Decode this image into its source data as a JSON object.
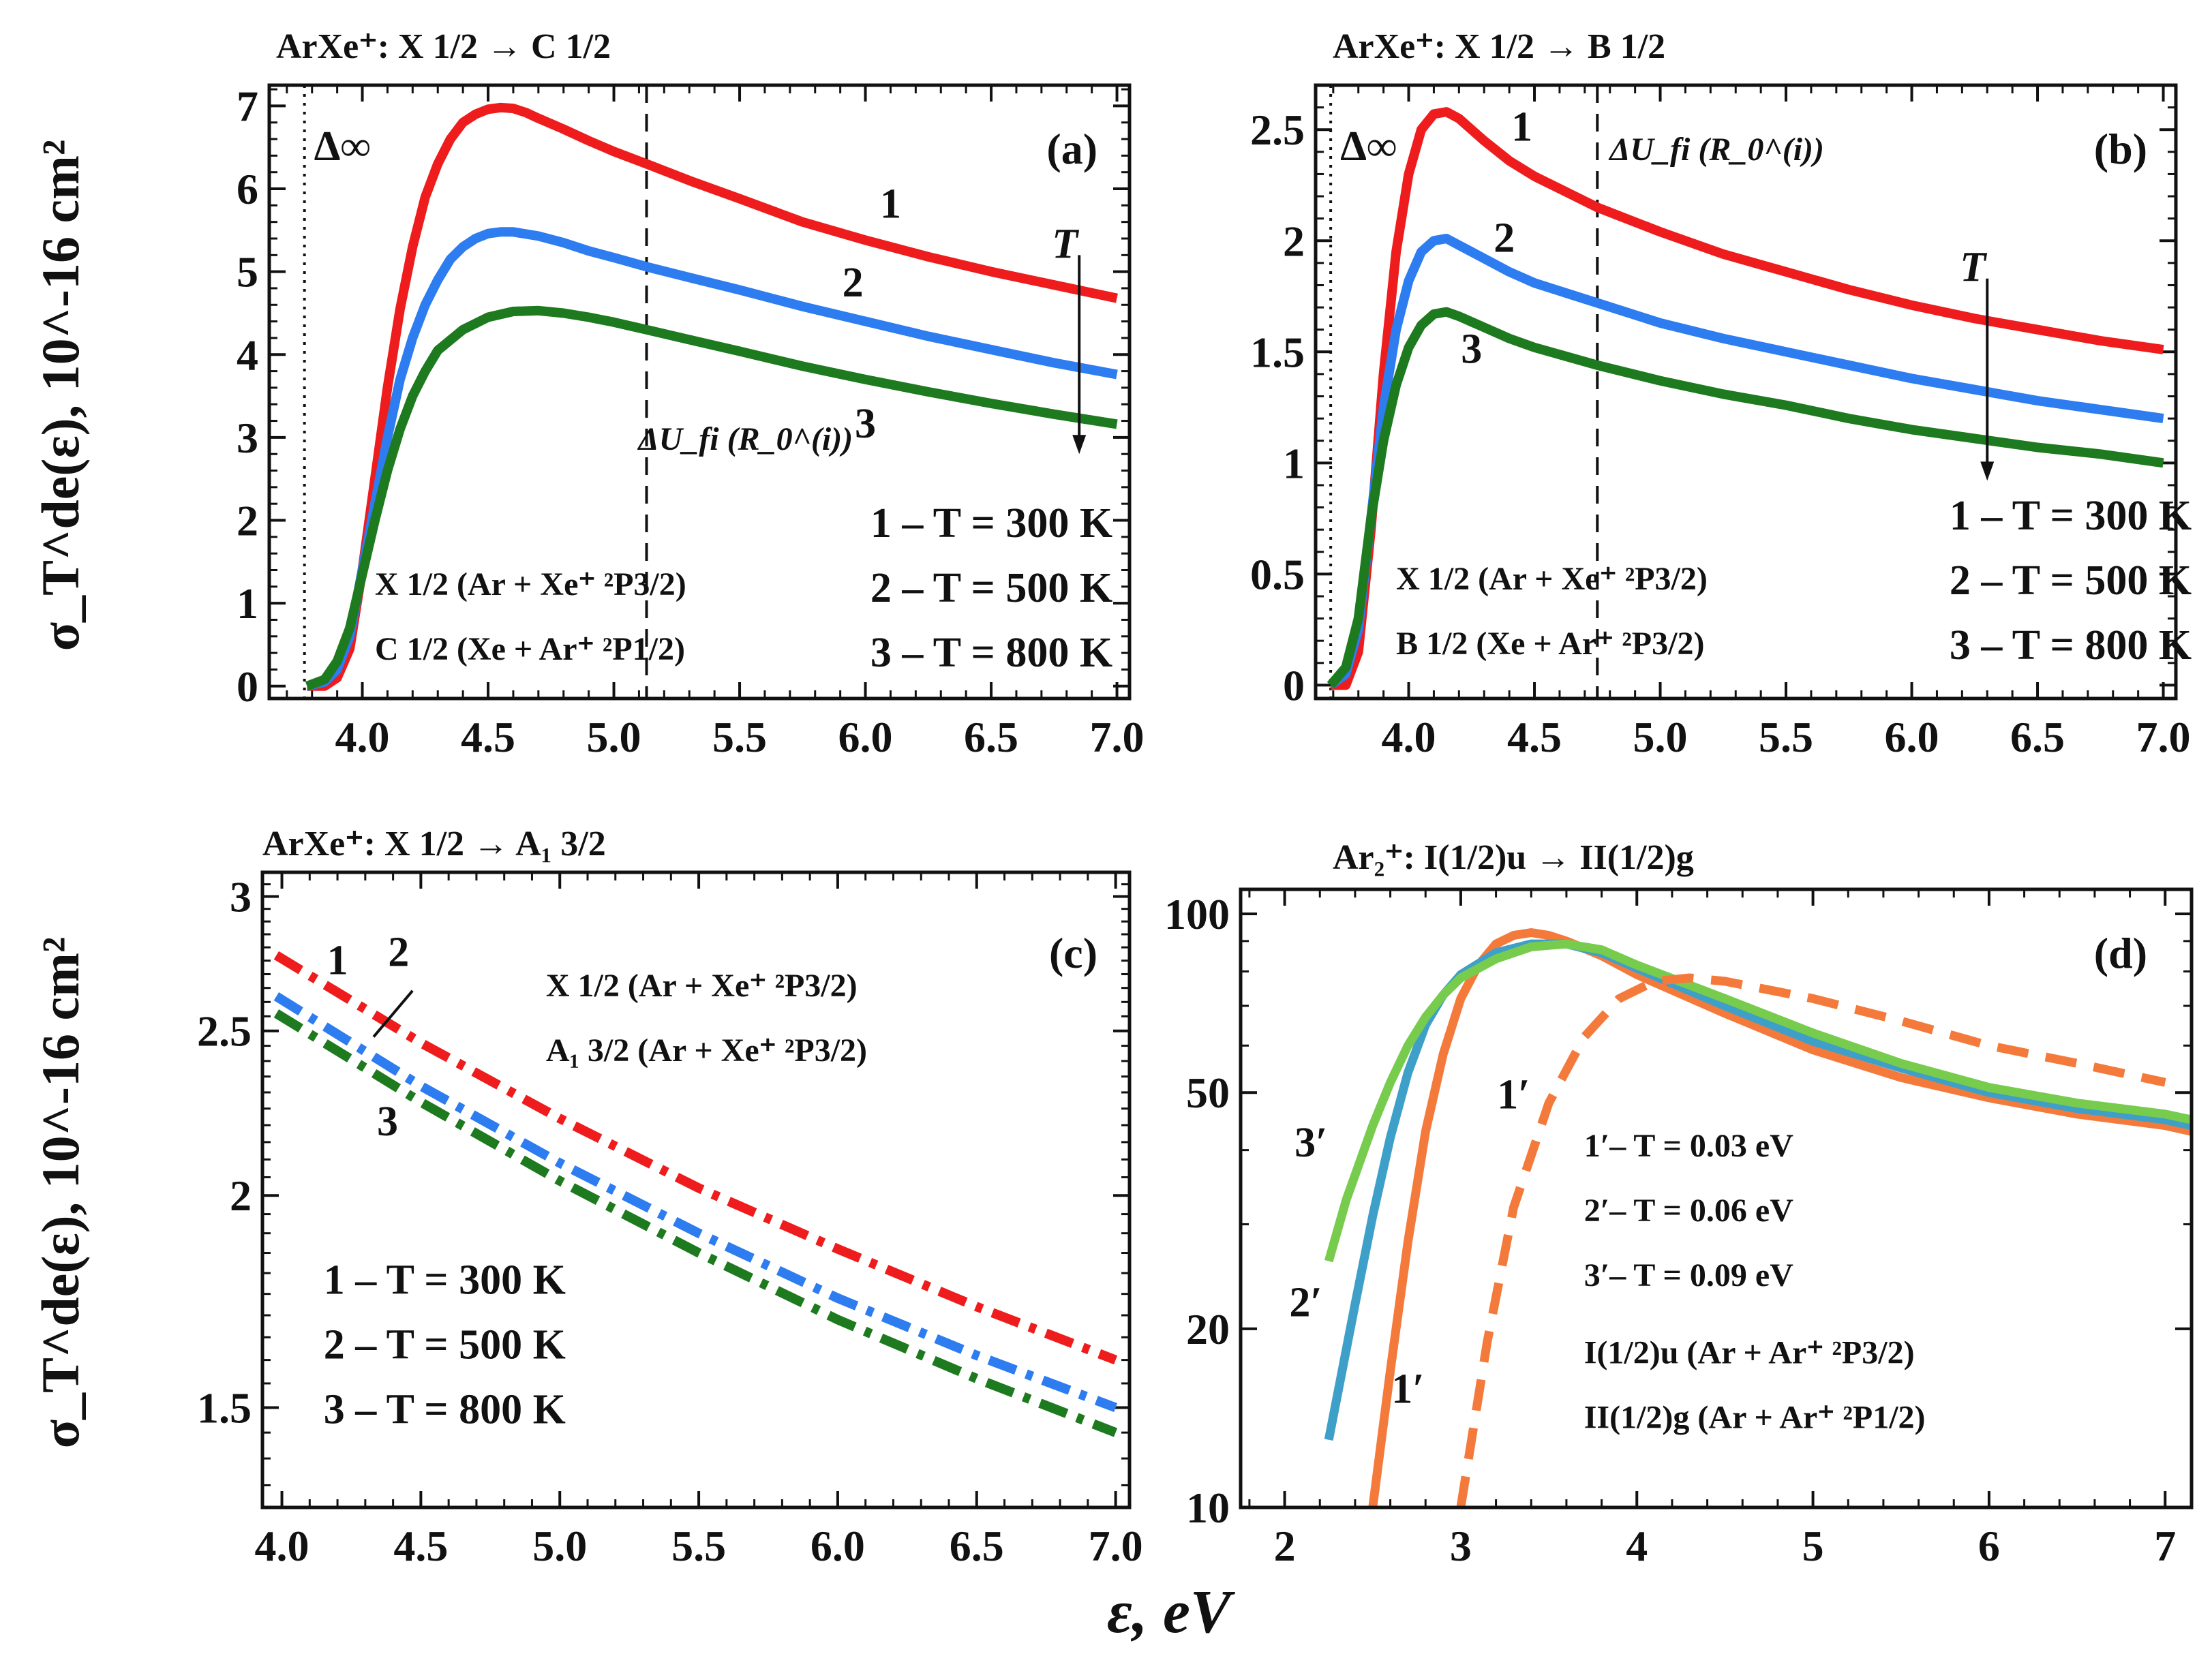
{
  "y_axis_label": "σ_T^de(ε), 10^-16 cm²",
  "x_axis_label": "ε, eV",
  "chart_data": [
    {
      "id": "a",
      "type": "line",
      "title": "ArXe⁺: X 1/2 → C 1/2",
      "panel_label": "(a)",
      "xlim": [
        3.63,
        7.05
      ],
      "ylim": [
        -0.15,
        7.25
      ],
      "xscale": "linear",
      "yscale": "linear",
      "xticks": [
        4.0,
        4.5,
        5.0,
        5.5,
        6.0,
        6.5,
        7.0
      ],
      "xtick_labels": [
        "4.0",
        "4.5",
        "5.0",
        "5.5",
        "6.0",
        "6.5",
        "7.0"
      ],
      "yticks": [
        0,
        1,
        2,
        3,
        4,
        5,
        6,
        7
      ],
      "ytick_labels": [
        "0",
        "1",
        "2",
        "3",
        "4",
        "5",
        "6",
        "7"
      ],
      "series": [
        {
          "name": "1 – T = 300 K",
          "color": "#ee1c1c",
          "dash": "solid",
          "x": [
            3.78,
            3.85,
            3.9,
            3.95,
            4.0,
            4.05,
            4.1,
            4.15,
            4.2,
            4.25,
            4.3,
            4.35,
            4.4,
            4.45,
            4.5,
            4.55,
            4.6,
            4.65,
            4.7,
            4.8,
            4.9,
            5.0,
            5.13,
            5.3,
            5.5,
            5.75,
            6.0,
            6.25,
            6.5,
            6.75,
            7.0
          ],
          "y": [
            0.0,
            0.0,
            0.1,
            0.45,
            1.4,
            2.5,
            3.6,
            4.55,
            5.3,
            5.9,
            6.3,
            6.6,
            6.8,
            6.9,
            6.96,
            6.98,
            6.97,
            6.92,
            6.85,
            6.72,
            6.58,
            6.45,
            6.3,
            6.1,
            5.88,
            5.6,
            5.38,
            5.18,
            5.0,
            4.84,
            4.68
          ]
        },
        {
          "name": "2 – T = 500 K",
          "color": "#2d7cf0",
          "dash": "solid",
          "x": [
            3.78,
            3.85,
            3.9,
            3.95,
            4.0,
            4.05,
            4.1,
            4.15,
            4.2,
            4.25,
            4.3,
            4.35,
            4.4,
            4.45,
            4.5,
            4.55,
            4.6,
            4.7,
            4.8,
            4.9,
            5.0,
            5.13,
            5.3,
            5.5,
            5.75,
            6.0,
            6.25,
            6.5,
            6.75,
            7.0
          ],
          "y": [
            0.0,
            0.05,
            0.2,
            0.6,
            1.4,
            2.2,
            3.0,
            3.7,
            4.2,
            4.6,
            4.9,
            5.15,
            5.3,
            5.4,
            5.46,
            5.48,
            5.48,
            5.43,
            5.35,
            5.25,
            5.17,
            5.06,
            4.93,
            4.78,
            4.58,
            4.4,
            4.22,
            4.06,
            3.9,
            3.76
          ]
        },
        {
          "name": "3 – T = 800 K",
          "color": "#1e7a1e",
          "dash": "solid",
          "x": [
            3.78,
            3.85,
            3.9,
            3.95,
            4.0,
            4.05,
            4.1,
            4.15,
            4.2,
            4.25,
            4.3,
            4.4,
            4.5,
            4.6,
            4.7,
            4.8,
            4.9,
            5.0,
            5.13,
            5.3,
            5.5,
            5.75,
            6.0,
            6.25,
            6.5,
            6.75,
            7.0
          ],
          "y": [
            0.0,
            0.08,
            0.3,
            0.7,
            1.35,
            2.0,
            2.6,
            3.1,
            3.5,
            3.8,
            4.05,
            4.3,
            4.45,
            4.52,
            4.53,
            4.5,
            4.45,
            4.39,
            4.3,
            4.18,
            4.04,
            3.86,
            3.7,
            3.55,
            3.41,
            3.28,
            3.16
          ]
        }
      ],
      "vlines": [
        {
          "x": 3.77,
          "style": "dotted"
        },
        {
          "x": 5.13,
          "style": "dashed"
        }
      ],
      "curve_labels": [
        {
          "text": "1",
          "x": 6.1,
          "y": 5.65
        },
        {
          "text": "2",
          "x": 5.95,
          "y": 4.7
        },
        {
          "text": "3",
          "x": 6.0,
          "y": 3.0
        }
      ],
      "threshold_label": "Δ∞",
      "vline_label": "ΔU_fi (R_0^(i))",
      "temp_symbol": "T",
      "arrow": {
        "x": 6.85,
        "y_from": 5.2,
        "y_to": 2.8
      },
      "legend": [
        "1 – T = 300 K",
        "2 – T = 500 K",
        "3 – T = 800 K"
      ],
      "legend_anchor": {
        "x": 6.02,
        "y": 1.8
      },
      "states": [
        "X 1/2 (Ar + Xe⁺ ²P3/2)",
        "C 1/2 (Xe + Ar⁺ ²P1/2)"
      ],
      "states_anchor": {
        "x": 4.05,
        "y": 1.1
      }
    },
    {
      "id": "b",
      "type": "line",
      "title": "ArXe⁺: X 1/2 → B 1/2",
      "panel_label": "(b)",
      "xlim": [
        3.63,
        7.05
      ],
      "ylim": [
        -0.06,
        2.7
      ],
      "xscale": "linear",
      "yscale": "linear",
      "xticks": [
        4.0,
        4.5,
        5.0,
        5.5,
        6.0,
        6.5,
        7.0
      ],
      "xtick_labels": [
        "4.0",
        "4.5",
        "5.0",
        "5.5",
        "6.0",
        "6.5",
        "7.0"
      ],
      "yticks": [
        0,
        0.5,
        1,
        1.5,
        2,
        2.5
      ],
      "ytick_labels": [
        "0",
        "0.5",
        "1",
        "1.5",
        "2",
        "2.5"
      ],
      "series": [
        {
          "name": "1 – T = 300 K",
          "color": "#ee1c1c",
          "dash": "solid",
          "x": [
            3.69,
            3.75,
            3.8,
            3.85,
            3.9,
            3.95,
            4.0,
            4.05,
            4.1,
            4.15,
            4.2,
            4.3,
            4.4,
            4.5,
            4.75,
            5.0,
            5.25,
            5.5,
            5.75,
            6.0,
            6.25,
            6.5,
            6.75,
            7.0
          ],
          "y": [
            0.0,
            0.0,
            0.15,
            0.7,
            1.4,
            1.95,
            2.3,
            2.5,
            2.57,
            2.58,
            2.55,
            2.45,
            2.36,
            2.29,
            2.15,
            2.04,
            1.94,
            1.86,
            1.78,
            1.71,
            1.65,
            1.6,
            1.55,
            1.51
          ]
        },
        {
          "name": "2 – T = 500 K",
          "color": "#2d7cf0",
          "dash": "solid",
          "x": [
            3.69,
            3.75,
            3.8,
            3.85,
            3.9,
            3.95,
            4.0,
            4.05,
            4.1,
            4.15,
            4.2,
            4.3,
            4.4,
            4.5,
            4.75,
            5.0,
            5.25,
            5.5,
            5.75,
            6.0,
            6.25,
            6.5,
            6.75,
            7.0
          ],
          "y": [
            0.0,
            0.05,
            0.25,
            0.75,
            1.25,
            1.6,
            1.82,
            1.95,
            2.0,
            2.01,
            1.98,
            1.92,
            1.86,
            1.81,
            1.72,
            1.63,
            1.56,
            1.5,
            1.44,
            1.38,
            1.33,
            1.28,
            1.24,
            1.2
          ]
        },
        {
          "name": "3 – T = 800 K",
          "color": "#1e7a1e",
          "dash": "solid",
          "x": [
            3.69,
            3.75,
            3.8,
            3.85,
            3.9,
            3.95,
            4.0,
            4.05,
            4.1,
            4.15,
            4.2,
            4.3,
            4.4,
            4.5,
            4.75,
            5.0,
            5.25,
            5.5,
            5.75,
            6.0,
            6.25,
            6.5,
            6.75,
            7.0
          ],
          "y": [
            0.0,
            0.08,
            0.3,
            0.75,
            1.1,
            1.35,
            1.52,
            1.62,
            1.67,
            1.68,
            1.66,
            1.61,
            1.56,
            1.52,
            1.44,
            1.37,
            1.31,
            1.26,
            1.2,
            1.15,
            1.11,
            1.07,
            1.04,
            1.0
          ]
        }
      ],
      "vlines": [
        {
          "x": 3.69,
          "style": "dotted"
        },
        {
          "x": 4.75,
          "style": "dashed"
        }
      ],
      "curve_labels": [
        {
          "text": "1",
          "x": 4.45,
          "y": 2.45
        },
        {
          "text": "2",
          "x": 4.38,
          "y": 1.95
        },
        {
          "text": "3",
          "x": 4.25,
          "y": 1.45
        }
      ],
      "threshold_label": "Δ∞",
      "vline_label": "ΔU_fi (R_0^(i))",
      "temp_symbol": "T",
      "arrow": {
        "x": 6.3,
        "y_from": 1.83,
        "y_to": 0.92
      },
      "legend": [
        "1 – T = 300 K",
        "2 – T = 500 K",
        "3 – T = 800 K"
      ],
      "legend_anchor": {
        "x": 6.15,
        "y": 0.7
      },
      "states": [
        "X 1/2 (Ar + Xe⁺ ²P3/2)",
        "B 1/2 (Xe + Ar⁺ ²P3/2)"
      ],
      "states_anchor": {
        "x": 3.95,
        "y": 0.43
      }
    },
    {
      "id": "c",
      "type": "line",
      "title": "ArXe⁺: X 1/2 → A₁ 3/2",
      "panel_label": "(c)",
      "xlim": [
        3.93,
        7.05
      ],
      "ylim": [
        1.31,
        3.1
      ],
      "xscale": "linear",
      "yscale": "log",
      "xticks": [
        4.0,
        4.5,
        5.0,
        5.5,
        6.0,
        6.5,
        7.0
      ],
      "xtick_labels": [
        "4.0",
        "4.5",
        "5.0",
        "5.5",
        "6.0",
        "6.5",
        "7.0"
      ],
      "yticks": [
        1.5,
        2,
        2.5,
        3
      ],
      "ytick_labels": [
        "1.5",
        "2",
        "2.5",
        "3"
      ],
      "series": [
        {
          "name": "1 – T = 300 K",
          "color": "#ee1c1c",
          "dash": "dashdot",
          "x": [
            3.98,
            4.5,
            5.0,
            5.5,
            6.0,
            6.5,
            7.0
          ],
          "y": [
            2.77,
            2.46,
            2.22,
            2.02,
            1.86,
            1.72,
            1.6
          ]
        },
        {
          "name": "2 – T = 500 K",
          "color": "#2d7cf0",
          "dash": "dashdot",
          "x": [
            3.98,
            4.5,
            5.0,
            5.5,
            6.0,
            6.5,
            7.0
          ],
          "y": [
            2.62,
            2.32,
            2.09,
            1.9,
            1.74,
            1.61,
            1.5
          ]
        },
        {
          "name": "3 – T = 800 K",
          "color": "#1e7a1e",
          "dash": "dashdot",
          "x": [
            3.98,
            4.5,
            5.0,
            5.5,
            6.0,
            6.5,
            7.0
          ],
          "y": [
            2.56,
            2.27,
            2.04,
            1.85,
            1.69,
            1.56,
            1.45
          ]
        }
      ],
      "curve_labels": [
        {
          "text": "1",
          "x": 4.2,
          "y": 2.7
        },
        {
          "text": "2",
          "x": 4.42,
          "y": 2.73
        },
        {
          "text": "3",
          "x": 4.38,
          "y": 2.17
        }
      ],
      "pointer": {
        "x1": 4.47,
        "y1": 2.64,
        "x2": 4.33,
        "y2": 2.48
      },
      "legend": [
        "1 – T = 300 K",
        "2 – T = 500 K",
        "3 – T = 800 K"
      ],
      "legend_anchor": {
        "x": 4.15,
        "y": 1.75
      },
      "states": [
        "X  1/2 (Ar + Xe⁺ ²P3/2)",
        "A₁ 3/2 (Ar + Xe⁺ ²P3/2)"
      ],
      "states_anchor": {
        "x": 4.95,
        "y": 2.62
      }
    },
    {
      "id": "d",
      "type": "line",
      "title": "Ar₂⁺: I(1/2)u → II(1/2)g",
      "panel_label": "(d)",
      "xlim": [
        1.75,
        7.15
      ],
      "ylim": [
        10,
        110
      ],
      "xscale": "linear",
      "yscale": "log",
      "xticks": [
        2,
        3,
        4,
        5,
        6,
        7
      ],
      "xtick_labels": [
        "2",
        "3",
        "4",
        "5",
        "6",
        "7"
      ],
      "yticks": [
        10,
        20,
        50,
        100
      ],
      "ytick_labels": [
        "10",
        "20",
        "50",
        "100"
      ],
      "series": [
        {
          "name": "1′ – T = 0.03 eV",
          "color": "#f47a3c",
          "dash": "solid",
          "x": [
            2.5,
            2.6,
            2.7,
            2.8,
            2.9,
            3.0,
            3.1,
            3.2,
            3.3,
            3.4,
            3.5,
            3.6,
            3.8,
            4.0,
            4.5,
            5.0,
            5.5,
            6.0,
            6.5,
            7.0,
            7.15
          ],
          "y": [
            10,
            17,
            28,
            43,
            58,
            72,
            82,
            89,
            92,
            93,
            92,
            90,
            85,
            79,
            68,
            59,
            53,
            49,
            46,
            44,
            43
          ]
        },
        {
          "name": "2′ – T = 0.06 eV",
          "color": "#3ea0c8",
          "dash": "solid",
          "x": [
            2.25,
            2.4,
            2.5,
            2.6,
            2.7,
            2.8,
            2.9,
            3.0,
            3.2,
            3.4,
            3.6,
            3.8,
            4.0,
            4.5,
            5.0,
            5.5,
            6.0,
            6.5,
            7.0,
            7.15
          ],
          "y": [
            13,
            22,
            31,
            42,
            54,
            65,
            73,
            79,
            86,
            89,
            89,
            86,
            81,
            70,
            61,
            55,
            50,
            47,
            45,
            44
          ]
        },
        {
          "name": "3′ – T = 0.09 eV",
          "color": "#77cc4e",
          "dash": "solid",
          "x": [
            2.25,
            2.35,
            2.5,
            2.6,
            2.7,
            2.8,
            2.9,
            3.0,
            3.2,
            3.4,
            3.6,
            3.8,
            4.0,
            4.5,
            5.0,
            5.5,
            6.0,
            6.5,
            7.0,
            7.15
          ],
          "y": [
            26,
            33,
            44,
            52,
            60,
            67,
            73,
            78,
            84,
            88,
            89,
            87,
            82,
            72,
            63,
            56,
            51,
            48,
            46,
            45
          ]
        },
        {
          "name": "1′ dashed",
          "color": "#f47a3c",
          "dash": "dashed",
          "x": [
            3.0,
            3.15,
            3.3,
            3.5,
            3.7,
            3.9,
            4.1,
            4.3,
            4.5,
            5.0,
            5.5,
            6.0,
            6.5,
            7.0
          ],
          "y": [
            10,
            19,
            32,
            48,
            62,
            72,
            77,
            78,
            77,
            72,
            66,
            60,
            56,
            52
          ]
        }
      ],
      "curve_labels": [
        {
          "text": "1′",
          "x": 2.7,
          "y": 15
        },
        {
          "text": "2′",
          "x": 2.12,
          "y": 21
        },
        {
          "text": "3′",
          "x": 2.15,
          "y": 39
        },
        {
          "text": "1′",
          "x": 3.3,
          "y": 47
        }
      ],
      "legend": [
        "1′– T = 0.03 eV",
        "2′– T = 0.06 eV",
        "3′– T = 0.09 eV"
      ],
      "legend_anchor": {
        "x": 3.7,
        "y": 39
      },
      "states": [
        "I(1/2)u  (Ar + Ar⁺ ²P3/2)",
        "II(1/2)g (Ar + Ar⁺ ²P1/2)"
      ],
      "states_anchor": {
        "x": 3.7,
        "y": 17.5
      }
    }
  ]
}
